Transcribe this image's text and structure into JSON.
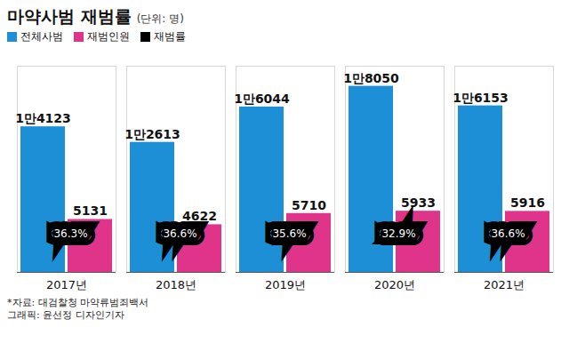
{
  "chart_data": {
    "type": "bar",
    "title": "마약사범 재범률",
    "subtitle": "(단위: 명)",
    "categories": [
      "2017년",
      "2018년",
      "2019년",
      "2020년",
      "2021년"
    ],
    "series": [
      {
        "name": "전체사범",
        "color": "#1d8fd6",
        "values": [
          14123,
          12613,
          16044,
          18050,
          16153
        ],
        "value_labels": [
          "1만4123",
          "1만2613",
          "1만6044",
          "1만8050",
          "1만6153"
        ]
      },
      {
        "name": "재범인원",
        "color": "#e0338a",
        "values": [
          5131,
          4622,
          5710,
          5933,
          5916
        ]
      },
      {
        "name": "재범률",
        "color": "#000000",
        "type": "label",
        "values": [
          36.3,
          36.6,
          35.6,
          32.9,
          36.6
        ],
        "value_labels": [
          "36.3%",
          "36.6%",
          "35.6%",
          "32.9%",
          "36.6%"
        ]
      }
    ],
    "ylim": [
      0,
      20000
    ],
    "data_labels": true,
    "tick_labels": "x",
    "legend": "top-left",
    "caption": [
      "*자료: 대검찰청 마약류범죄백서",
      "그래픽: 윤선정 디자인기자"
    ]
  }
}
